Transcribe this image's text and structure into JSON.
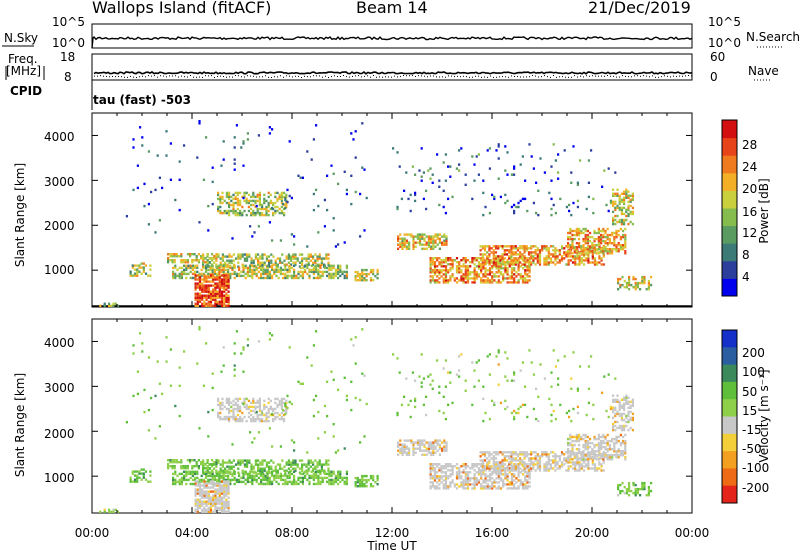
{
  "header": {
    "station": "Wallops Island (fitACF)",
    "beam": "Beam 14",
    "date": "21/Dec/2019"
  },
  "top_panels": {
    "nsky_label": "N.Sky",
    "nsky_tick_top": "10^5",
    "nsky_tick_bottom": "10^0",
    "nsearch_label": "N.Search",
    "nsearch_tick_top": "10^5",
    "nsearch_tick_bottom": "10^0",
    "freq_label": "Freq.",
    "freq_unit": "[MHz]",
    "freq_tick_top": "18",
    "freq_tick_bottom": "8",
    "nave_label": "Nave",
    "nave_tick_top": "60",
    "nave_tick_bottom": "0",
    "cpid_label": "CPID",
    "cpid_value": "tau (fast) -503"
  },
  "x_axis": {
    "label": "Time UT",
    "ticks": [
      "00:00",
      "04:00",
      "08:00",
      "12:00",
      "16:00",
      "20:00",
      "00:00"
    ]
  },
  "chart_data": [
    {
      "type": "heatmap",
      "name": "power-panel",
      "ylabel": "Slant Range [km]",
      "yticks": [
        1000,
        2000,
        3000,
        4000
      ],
      "ylim": [
        180,
        4500
      ],
      "xlim_hours": [
        0,
        24
      ],
      "colorbar": {
        "label": "Power [dB]",
        "ticks": [
          4,
          8,
          12,
          16,
          20,
          24,
          28
        ],
        "range": [
          0,
          30
        ]
      },
      "colors": [
        "#0000ee",
        "#2c3f9c",
        "#3c7a78",
        "#5a9b62",
        "#86bb4e",
        "#c9cf3d",
        "#f3b027",
        "#f07b1e",
        "#e8441a",
        "#d40f0f"
      ]
    },
    {
      "type": "heatmap",
      "name": "velocity-panel",
      "ylabel": "Slant Range [km]",
      "yticks": [
        1000,
        2000,
        3000,
        4000
      ],
      "ylim": [
        180,
        4500
      ],
      "xlim_hours": [
        0,
        24
      ],
      "colorbar": {
        "label": "Velocity [m s⁻¹]",
        "ticks": [
          200,
          100,
          50,
          15,
          -15,
          -50,
          -100,
          -200
        ]
      },
      "colors": [
        "#1530c8",
        "#2a5ea0",
        "#3c8a5c",
        "#5fbf3a",
        "#8fd04a",
        "#c8c8c8",
        "#f3d03a",
        "#f3a020",
        "#ee6a14",
        "#e4231a"
      ]
    }
  ],
  "echo_regions": [
    {
      "t0": 0.2,
      "t1": 1.3,
      "r0": 180,
      "r1": 260,
      "p": 0.35,
      "v": 0.45,
      "pw": 0.45,
      "vel": 15,
      "d": 0.5
    },
    {
      "t0": 1.5,
      "t1": 2.3,
      "r0": 850,
      "r1": 1150,
      "p": 0.45,
      "v": 0.5,
      "pw": 0.5,
      "vel": 30,
      "d": 0.45
    },
    {
      "t0": 3.0,
      "t1": 5.0,
      "r0": 1150,
      "r1": 1350,
      "p": 0.45,
      "v": 0.5,
      "pw": 0.55,
      "vel": 40,
      "d": 0.6
    },
    {
      "t0": 4.4,
      "t1": 9.5,
      "r0": 1050,
      "r1": 1350,
      "p": 0.4,
      "v": 0.5,
      "pw": 0.5,
      "vel": 40,
      "d": 0.55
    },
    {
      "t0": 3.2,
      "t1": 10.2,
      "r0": 800,
      "r1": 1100,
      "p": 0.5,
      "v": 0.5,
      "pw": 0.5,
      "vel": 40,
      "d": 0.6
    },
    {
      "t0": 4.1,
      "t1": 5.5,
      "r0": 180,
      "r1": 900,
      "p": 0.8,
      "v": 0.25,
      "pw": 0.85,
      "vel": 0,
      "d": 0.8
    },
    {
      "t0": 5.0,
      "t1": 7.8,
      "r0": 2200,
      "r1": 2700,
      "p": 0.45,
      "v": 0.35,
      "pw": 0.5,
      "vel": 10,
      "d": 0.5
    },
    {
      "t0": 10.5,
      "t1": 11.4,
      "r0": 750,
      "r1": 1000,
      "p": 0.45,
      "v": 0.5,
      "pw": 0.5,
      "vel": 40,
      "d": 0.55
    },
    {
      "t0": 12.2,
      "t1": 14.2,
      "r0": 1450,
      "r1": 1800,
      "p": 0.5,
      "v": 0.25,
      "pw": 0.6,
      "vel": 0,
      "d": 0.6
    },
    {
      "t0": 13.5,
      "t1": 17.5,
      "r0": 700,
      "r1": 1250,
      "p": 0.6,
      "v": 0.25,
      "pw": 0.7,
      "vel": 0,
      "d": 0.6
    },
    {
      "t0": 15.5,
      "t1": 20.5,
      "r0": 1100,
      "r1": 1550,
      "p": 0.6,
      "v": 0.25,
      "pw": 0.7,
      "vel": 0,
      "d": 0.6
    },
    {
      "t0": 19.0,
      "t1": 21.3,
      "r0": 1350,
      "r1": 1900,
      "p": 0.55,
      "v": 0.3,
      "pw": 0.65,
      "vel": 0,
      "d": 0.55
    },
    {
      "t0": 20.8,
      "t1": 21.6,
      "r0": 2000,
      "r1": 2800,
      "p": 0.45,
      "v": 0.35,
      "pw": 0.55,
      "vel": 5,
      "d": 0.5
    },
    {
      "t0": 21.0,
      "t1": 22.4,
      "r0": 550,
      "r1": 850,
      "p": 0.45,
      "v": 0.45,
      "pw": 0.55,
      "vel": 30,
      "d": 0.45
    },
    {
      "t0": 12.0,
      "t1": 21.0,
      "r0": 2200,
      "r1": 3800,
      "p": 0.3,
      "v": 0.4,
      "pw": 0.2,
      "vel": 20,
      "d": 0.04
    },
    {
      "t0": 1.0,
      "t1": 11.0,
      "r0": 1500,
      "r1": 4300,
      "p": 0.3,
      "v": 0.45,
      "pw": 0.15,
      "vel": 30,
      "d": 0.02
    }
  ]
}
